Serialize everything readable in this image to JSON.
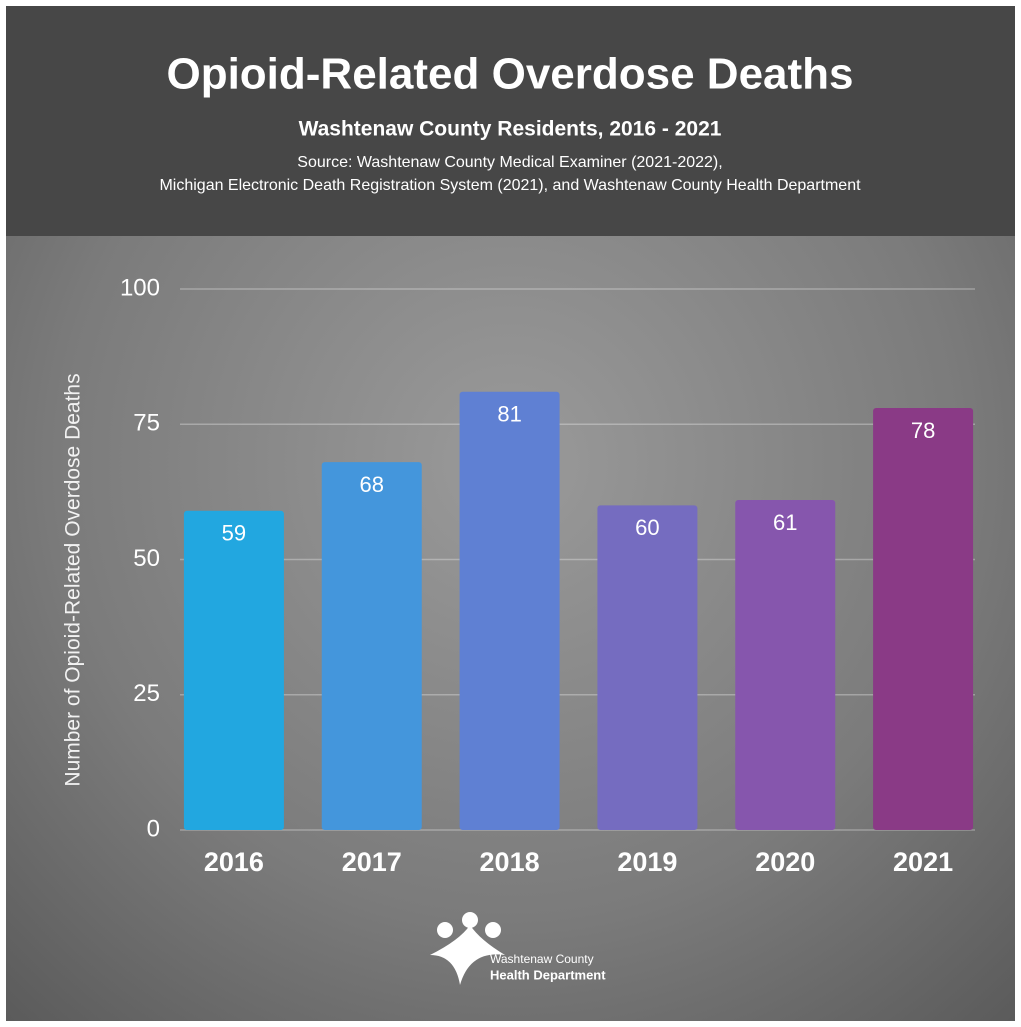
{
  "chart_data": {
    "type": "bar",
    "title": "Opioid-Related Overdose Deaths",
    "subtitle": "Washtenaw County Residents, 2016 - 2021",
    "source": [
      "Source: Washtenaw County Medical Examiner (2021-2022),",
      "Michigan Electronic Death Registration System (2021), and Washtenaw County Health Department"
    ],
    "y_label": "Number of Opioid-Related Overdose Deaths",
    "categories": [
      "2016",
      "2017",
      "2018",
      "2019",
      "2020",
      "2021"
    ],
    "values": [
      59,
      68,
      81,
      60,
      61,
      78
    ],
    "colors": [
      "#22a7e0",
      "#4496dc",
      "#5f80d3",
      "#756cc0",
      "#8656ad",
      "#8a3a86"
    ],
    "ylim": [
      0,
      100
    ],
    "yticks": [
      0,
      25,
      50,
      75,
      100
    ],
    "grid": true,
    "logo": [
      "Washtenaw County",
      "Health Department"
    ]
  }
}
